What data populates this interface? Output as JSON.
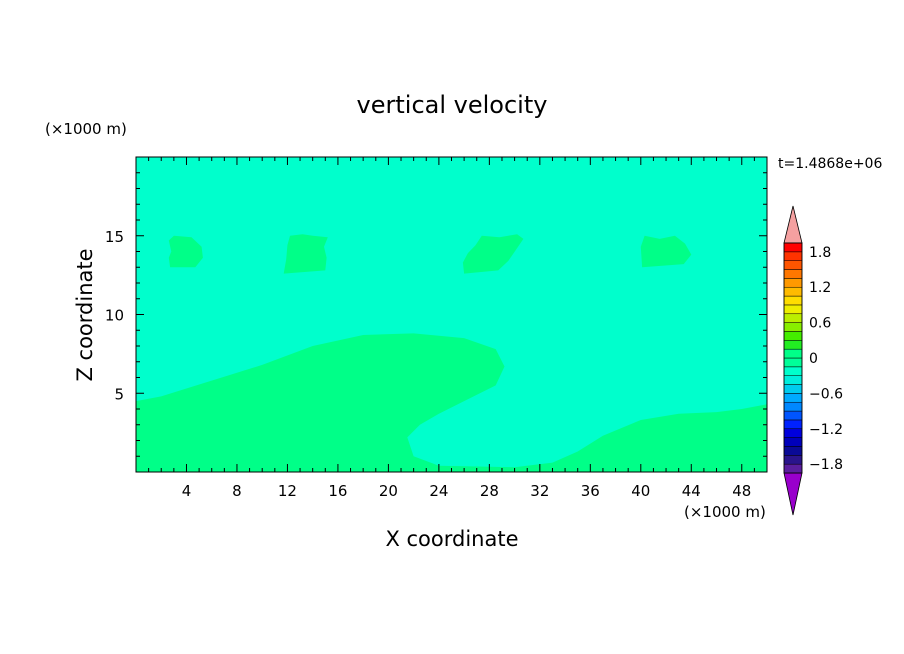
{
  "chart_data": {
    "type": "heatmap",
    "title": "vertical velocity",
    "xlabel": "X coordinate",
    "ylabel": "Z coordinate",
    "x_unit": "(×1000 m)",
    "y_unit": "(×1000 m)",
    "time_label": "t=1.4868e+06",
    "xlim": [
      0,
      50
    ],
    "ylim": [
      0,
      20
    ],
    "x_ticks": [
      4,
      8,
      12,
      16,
      20,
      24,
      28,
      32,
      36,
      40,
      44,
      48
    ],
    "y_ticks": [
      5,
      10,
      15
    ],
    "background_value_range": [
      -0.3,
      0
    ],
    "colorbar": {
      "levels": [
        -2.1,
        -1.95,
        -1.8,
        -1.65,
        -1.5,
        -1.35,
        -1.2,
        -1.05,
        -0.9,
        -0.75,
        -0.6,
        -0.45,
        -0.3,
        -0.15,
        0,
        0.15,
        0.3,
        0.45,
        0.6,
        0.75,
        0.9,
        1.05,
        1.2,
        1.35,
        1.5,
        1.65,
        1.8,
        1.95
      ],
      "colors": [
        "#9900cc",
        "#5a1e9e",
        "#2a148c",
        "#0a0a96",
        "#0000bb",
        "#0000dd",
        "#0022ff",
        "#0055ff",
        "#0088ff",
        "#00aaff",
        "#00ccee",
        "#00eedd",
        "#00ffcc",
        "#00ff99",
        "#00ff88",
        "#22ee22",
        "#44ee00",
        "#88ee00",
        "#bbee00",
        "#eeee00",
        "#ffdd00",
        "#ffbb00",
        "#ff9900",
        "#ff7700",
        "#ff5500",
        "#ff3300",
        "#ff0000",
        "#f4a0a0"
      ],
      "tick_labels": [
        "1.8",
        "1.2",
        "0.6",
        "0",
        "−0.6",
        "−1.2",
        "−1.8"
      ],
      "tick_values": [
        1.8,
        1.2,
        0.6,
        0,
        -0.6,
        -1.2,
        -1.8
      ]
    },
    "regions": [
      {
        "value_range": [
          0,
          0.15
        ],
        "description": "near-surface updraft layer",
        "outline": [
          [
            0,
            0
          ],
          [
            0,
            4.5
          ],
          [
            2,
            4.8
          ],
          [
            6,
            5.8
          ],
          [
            10,
            6.8
          ],
          [
            14,
            8.0
          ],
          [
            18,
            8.7
          ],
          [
            22,
            8.8
          ],
          [
            26,
            8.5
          ],
          [
            28.5,
            7.8
          ],
          [
            29.2,
            6.7
          ],
          [
            28.5,
            5.5
          ],
          [
            26,
            4.5
          ],
          [
            24,
            3.7
          ],
          [
            22.5,
            3.0
          ],
          [
            21.5,
            2.2
          ],
          [
            22,
            1.0
          ],
          [
            24,
            0.4
          ],
          [
            30,
            0.3
          ],
          [
            33,
            0.6
          ],
          [
            35,
            1.3
          ],
          [
            37,
            2.3
          ],
          [
            40,
            3.3
          ],
          [
            43,
            3.7
          ],
          [
            46,
            3.8
          ],
          [
            48,
            4.0
          ],
          [
            50,
            4.3
          ],
          [
            50,
            0
          ]
        ]
      },
      {
        "value_range": [
          0,
          0.15
        ],
        "description": "upper updraft cell",
        "outline": [
          [
            2.7,
            13.0
          ],
          [
            4.7,
            13.0
          ],
          [
            5.3,
            13.6
          ],
          [
            5.2,
            14.3
          ],
          [
            4.4,
            14.9
          ],
          [
            3.0,
            15.0
          ],
          [
            2.6,
            14.7
          ],
          [
            2.8,
            14.0
          ],
          [
            2.6,
            13.6
          ]
        ]
      },
      {
        "value_range": [
          0,
          0.15
        ],
        "description": "upper updraft cell",
        "outline": [
          [
            11.7,
            12.6
          ],
          [
            15.0,
            12.8
          ],
          [
            15.1,
            13.6
          ],
          [
            14.9,
            14.3
          ],
          [
            15.2,
            14.9
          ],
          [
            14.0,
            15.0
          ],
          [
            13.2,
            15.1
          ],
          [
            12.2,
            15.0
          ],
          [
            12.0,
            14.4
          ],
          [
            11.9,
            13.5
          ]
        ]
      },
      {
        "value_range": [
          0,
          0.15
        ],
        "description": "upper updraft cell",
        "outline": [
          [
            26.0,
            12.6
          ],
          [
            28.7,
            12.8
          ],
          [
            29.5,
            13.4
          ],
          [
            30.1,
            14.1
          ],
          [
            30.7,
            14.8
          ],
          [
            30.2,
            15.1
          ],
          [
            28.8,
            14.9
          ],
          [
            27.4,
            15.0
          ],
          [
            26.9,
            14.4
          ],
          [
            26.3,
            13.9
          ],
          [
            25.9,
            13.3
          ]
        ]
      },
      {
        "value_range": [
          0,
          0.15
        ],
        "description": "upper updraft cell",
        "outline": [
          [
            40.1,
            13.0
          ],
          [
            43.4,
            13.2
          ],
          [
            44.0,
            13.8
          ],
          [
            43.5,
            14.5
          ],
          [
            42.7,
            15.0
          ],
          [
            41.5,
            14.8
          ],
          [
            40.3,
            15.0
          ],
          [
            40.0,
            14.3
          ]
        ]
      }
    ]
  }
}
